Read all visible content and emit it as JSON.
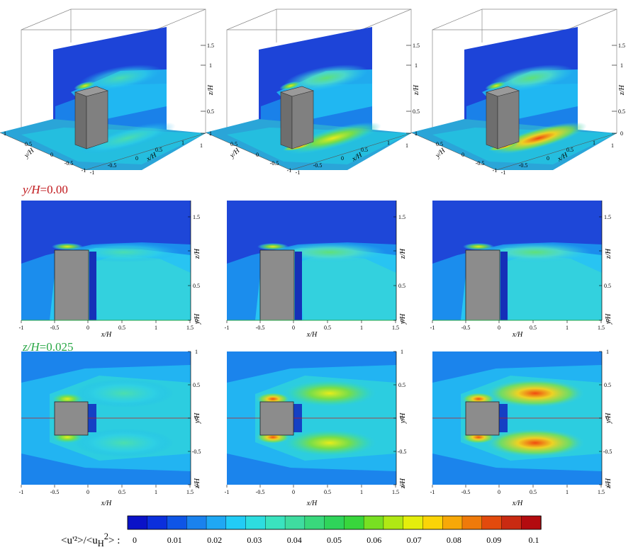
{
  "figure": {
    "section_y_label": {
      "var": "y/H",
      "val": "=0.00"
    },
    "section_z_label": {
      "var": "z/H",
      "val": "=0.025"
    },
    "axis_3d": {
      "z_label": "z/H",
      "z_ticks": [
        "1.5",
        "1",
        "0.5",
        "0"
      ],
      "y_label": "y/H",
      "y_ticks": [
        "1",
        "0.5",
        "0",
        "-0.5",
        "-1"
      ],
      "x_label": "x/H",
      "x_ticks": [
        "-1",
        "-0.5",
        "0",
        "0.5",
        "1"
      ],
      "x_ticks_right": [
        "1"
      ]
    },
    "axis_row2": {
      "x_label": "x/H",
      "right_label_top": "z/H",
      "right_label_bot": "y/H",
      "x_ticks": [
        "-1",
        "-0.5",
        "0",
        "0.5",
        "1",
        "1.5"
      ],
      "right_ticks": [
        "1.5",
        "1",
        "0.5",
        "0"
      ]
    },
    "axis_row3": {
      "x_label": "x/H",
      "right_label_top": "y/H",
      "right_label_bot": "z/H",
      "x_ticks": [
        "-1",
        "-0.5",
        "0",
        "0.5",
        "1",
        "1.5"
      ],
      "right_ticks": [
        "1",
        "0.5",
        "0",
        "-0.5",
        "-1"
      ]
    },
    "colorbar": {
      "title": "<u'²>/<u",
      "title_sub": "H",
      "title_sup": "2",
      "title_end": "> :",
      "ticks": [
        "0",
        "0.01",
        "0.02",
        "0.03",
        "0.04",
        "0.05",
        "0.06",
        "0.07",
        "0.08",
        "0.09",
        "0.1"
      ],
      "colors": [
        "#0a12c8",
        "#0b2fdc",
        "#0f55e6",
        "#1a82ee",
        "#1fa8f4",
        "#22ccf6",
        "#2ddde0",
        "#3ae3bf",
        "#3fdca0",
        "#39d87c",
        "#2fd45a",
        "#38d63c",
        "#78e022",
        "#b0e814",
        "#e4ee0c",
        "#fbd407",
        "#f7a808",
        "#ef7a0a",
        "#e24a0d",
        "#c92a12",
        "#b30b0f"
      ]
    }
  }
}
